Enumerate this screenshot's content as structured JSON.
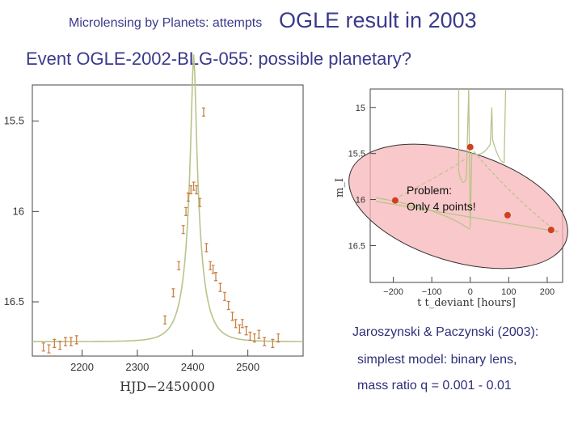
{
  "slide": {
    "title_small": "Microlensing by Planets: attempts",
    "title_big": "OGLE result in 2003",
    "subtitle": "Event OGLE-2002-BLG-055:  possible planetary?",
    "ref_line1": "Jaroszynski & Paczynski (2003):",
    "ref_line2": "simplest model: binary lens,",
    "ref_line3": "mass ratio q = 0.001 - 0.01",
    "annotation": "Problem:\nOnly 4 points!"
  },
  "colors": {
    "title": "#3a3a8c",
    "model_curve": "#b8c48a",
    "data_points": "#c87a3a",
    "ellipse_fill": "#f7b6b8",
    "highlight_points": "#d04020"
  },
  "chart_data": [
    {
      "type": "scatter",
      "xlabel": "HJD−2450000",
      "ylabel": "",
      "xlim": [
        2110,
        2600
      ],
      "ylim": [
        16.8,
        15.3
      ],
      "y_inverted": true,
      "xticks": [
        "2200",
        "2300",
        "2400",
        "2500"
      ],
      "yticks": [
        "15.5",
        "16",
        "16.5"
      ],
      "series": [
        {
          "values": [
            {
              "x": 2130,
              "y": 16.75
            },
            {
              "x": 2140,
              "y": 16.76
            },
            {
              "x": 2150,
              "y": 16.73
            },
            {
              "x": 2160,
              "y": 16.74
            },
            {
              "x": 2170,
              "y": 16.72
            },
            {
              "x": 2180,
              "y": 16.72
            },
            {
              "x": 2190,
              "y": 16.71
            },
            {
              "x": 2350,
              "y": 16.6
            },
            {
              "x": 2365,
              "y": 16.45
            },
            {
              "x": 2375,
              "y": 16.3
            },
            {
              "x": 2383,
              "y": 16.1
            },
            {
              "x": 2388,
              "y": 16.0
            },
            {
              "x": 2392,
              "y": 15.92
            },
            {
              "x": 2397,
              "y": 15.88
            },
            {
              "x": 2402,
              "y": 15.86
            },
            {
              "x": 2407,
              "y": 15.88
            },
            {
              "x": 2413,
              "y": 15.95
            },
            {
              "x": 2420,
              "y": 15.45
            },
            {
              "x": 2425,
              "y": 16.2
            },
            {
              "x": 2432,
              "y": 16.3
            },
            {
              "x": 2437,
              "y": 16.32
            },
            {
              "x": 2442,
              "y": 16.36
            },
            {
              "x": 2450,
              "y": 16.42
            },
            {
              "x": 2458,
              "y": 16.47
            },
            {
              "x": 2465,
              "y": 16.52
            },
            {
              "x": 2472,
              "y": 16.58
            },
            {
              "x": 2478,
              "y": 16.62
            },
            {
              "x": 2485,
              "y": 16.65
            },
            {
              "x": 2490,
              "y": 16.62
            },
            {
              "x": 2497,
              "y": 16.66
            },
            {
              "x": 2504,
              "y": 16.69
            },
            {
              "x": 2512,
              "y": 16.7
            },
            {
              "x": 2520,
              "y": 16.68
            },
            {
              "x": 2530,
              "y": 16.72
            },
            {
              "x": 2545,
              "y": 16.73
            },
            {
              "x": 2555,
              "y": 16.7
            }
          ]
        }
      ]
    },
    {
      "type": "scatter",
      "xlabel": "t  t_deviant [hours]",
      "ylabel": "m_I",
      "xlim": [
        -260,
        240
      ],
      "ylim": [
        16.9,
        14.8
      ],
      "y_inverted": true,
      "xticks": [
        "−200",
        "−100",
        "0",
        "100",
        "200"
      ],
      "yticks": [
        "15",
        "15.5",
        "16",
        "16.5"
      ],
      "series": [
        {
          "values": [
            {
              "x": -195,
              "y": 16.01
            },
            {
              "x": 0,
              "y": 15.43
            },
            {
              "x": 97,
              "y": 16.17
            },
            {
              "x": 210,
              "y": 16.33
            }
          ]
        }
      ]
    }
  ]
}
